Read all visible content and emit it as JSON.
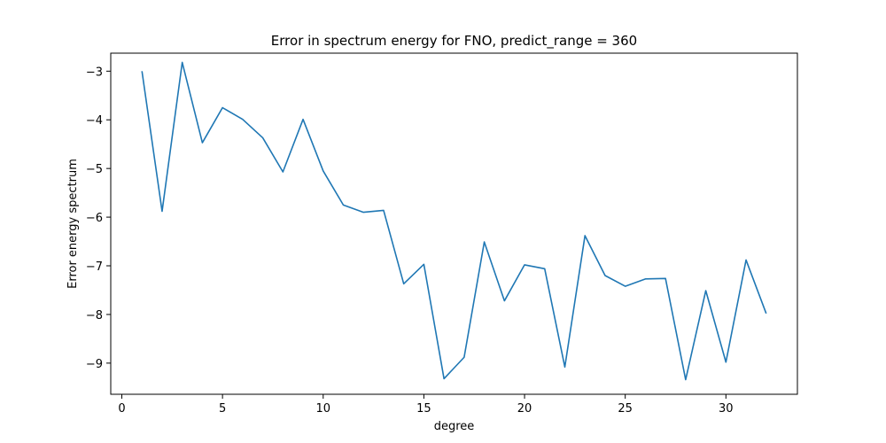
{
  "chart_data": {
    "type": "line",
    "title": "Error in spectrum energy for FNO, predict_range = 360",
    "xlabel": "degree",
    "ylabel": "Error energy spectrum",
    "xlim": [
      -0.55,
      33.55
    ],
    "ylim": [
      -9.64,
      -2.63
    ],
    "xticks": [
      0,
      5,
      10,
      15,
      20,
      25,
      30
    ],
    "yticks": [
      -9,
      -8,
      -7,
      -6,
      -5,
      -4,
      -3
    ],
    "grid": false,
    "line_color": "#1f77b4",
    "series": [
      {
        "x": [
          1,
          2,
          3,
          4,
          5,
          6,
          7,
          8,
          9,
          10,
          11,
          12,
          13,
          14,
          15,
          16,
          17,
          18,
          19,
          20,
          21,
          22,
          23,
          24,
          25,
          26,
          27,
          28,
          29,
          30,
          31,
          32
        ],
        "values": [
          -3.0,
          -5.88,
          -2.82,
          -4.47,
          -3.75,
          -3.99,
          -4.37,
          -5.07,
          -3.99,
          -5.05,
          -5.75,
          -5.9,
          -5.86,
          -7.37,
          -6.97,
          -9.32,
          -8.88,
          -6.51,
          -7.72,
          -6.98,
          -7.06,
          -9.08,
          -6.38,
          -7.2,
          -7.42,
          -7.27,
          -7.26,
          -9.34,
          -7.51,
          -8.98,
          -6.88,
          -7.98
        ]
      }
    ]
  }
}
